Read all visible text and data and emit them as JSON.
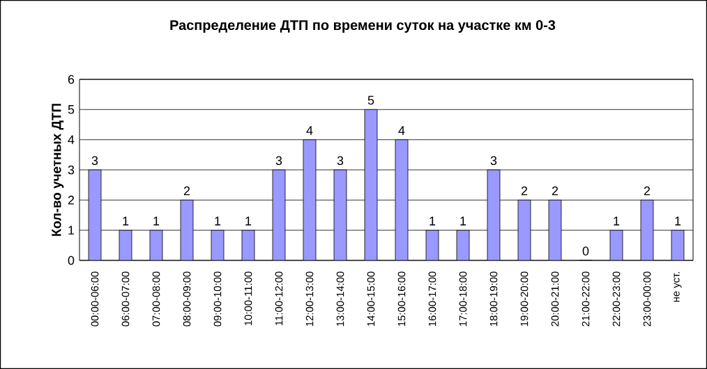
{
  "chart_data": {
    "type": "bar",
    "title": "Распределение ДТП по времени суток на участке км 0-3",
    "ylabel": "Кол-во учетных ДТП",
    "categories": [
      "00:00-06:00",
      "06:00-07:00",
      "07:00-08:00",
      "08:00-09:00",
      "09:00-10:00",
      "10:00-11:00",
      "11:00-12:00",
      "12:00-13:00",
      "13:00-14:00",
      "14:00-15:00",
      "15:00-16:00",
      "16:00-17:00",
      "17:00-18:00",
      "18:00-19:00",
      "19:00-20:00",
      "20:00-21:00",
      "21:00-22:00",
      "22:00-23:00",
      "23:00-00:00",
      "не уст."
    ],
    "values": [
      3,
      1,
      1,
      2,
      1,
      1,
      3,
      4,
      3,
      5,
      4,
      1,
      1,
      3,
      2,
      2,
      0,
      1,
      2,
      1
    ],
    "color": "#9999ff",
    "ylim": [
      0,
      6
    ],
    "yticks": [
      0,
      1,
      2,
      3,
      4,
      5,
      6
    ],
    "grid": "y",
    "data_labels": true
  }
}
